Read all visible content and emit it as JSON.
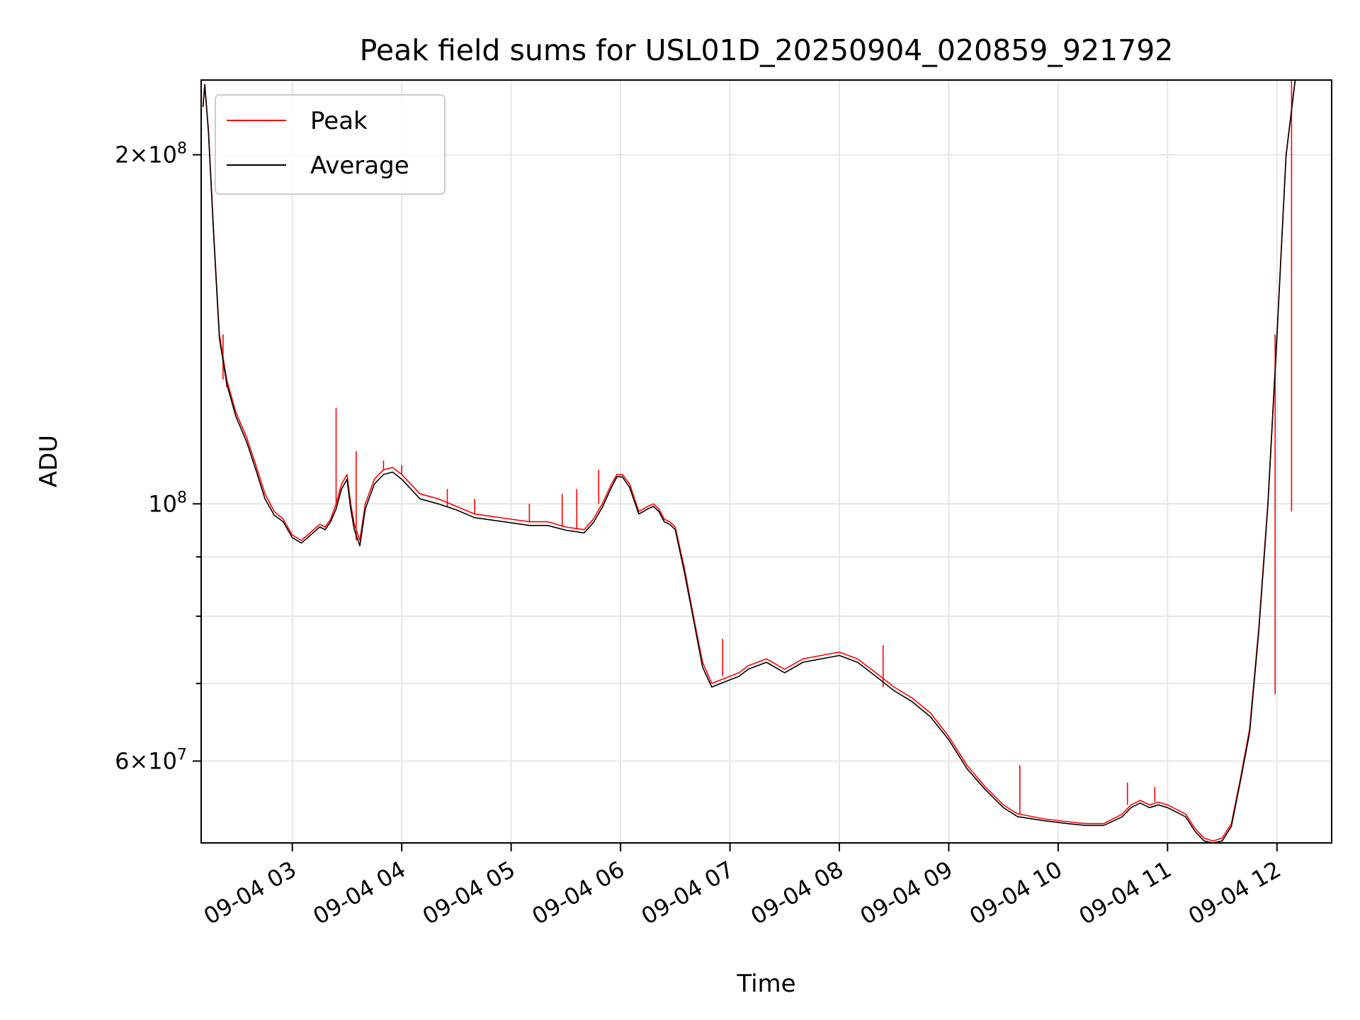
{
  "chart_data": {
    "type": "line",
    "title": "Peak field sums for USL01D_20250904_020859_921792",
    "xlabel": "Time",
    "ylabel": "ADU",
    "yscale": "log",
    "grid": true,
    "legend_position": "upper-left",
    "xlim": [
      "2025-09-04 02:10",
      "2025-09-04 12:30"
    ],
    "ylim": [
      51000000,
      232000000
    ],
    "x_ticks": [
      "09-04 03",
      "09-04 04",
      "09-04 05",
      "09-04 06",
      "09-04 07",
      "09-04 08",
      "09-04 09",
      "09-04 10",
      "09-04 11",
      "09-04 12"
    ],
    "y_tick_labels": [
      {
        "value": 200000000,
        "mantissa": "2",
        "exponent": "8"
      },
      {
        "value": 100000000,
        "mantissa": "",
        "exponent": "8"
      },
      {
        "value": 60000000,
        "mantissa": "6",
        "exponent": "7"
      }
    ],
    "y_minor_ticks": [
      70000000,
      80000000,
      90000000
    ],
    "series": [
      {
        "name": "Peak",
        "color": "#ff0000",
        "x": [
          "2025-09-04 02:11",
          "2025-09-04 02:12",
          "2025-09-04 02:14",
          "2025-09-04 02:17",
          "2025-09-04 02:20",
          "2025-09-04 02:24",
          "2025-09-04 02:29",
          "2025-09-04 02:35",
          "2025-09-04 02:40",
          "2025-09-04 02:45",
          "2025-09-04 02:50",
          "2025-09-04 02:55",
          "2025-09-04 03:00",
          "2025-09-04 03:05",
          "2025-09-04 03:10",
          "2025-09-04 03:15",
          "2025-09-04 03:18",
          "2025-09-04 03:21",
          "2025-09-04 03:24",
          "2025-09-04 03:27",
          "2025-09-04 03:30",
          "2025-09-04 03:32",
          "2025-09-04 03:34",
          "2025-09-04 03:37",
          "2025-09-04 03:40",
          "2025-09-04 03:45",
          "2025-09-04 03:50",
          "2025-09-04 03:55",
          "2025-09-04 04:00",
          "2025-09-04 04:05",
          "2025-09-04 04:10",
          "2025-09-04 04:20",
          "2025-09-04 04:30",
          "2025-09-04 04:40",
          "2025-09-04 04:50",
          "2025-09-04 05:00",
          "2025-09-04 05:10",
          "2025-09-04 05:20",
          "2025-09-04 05:30",
          "2025-09-04 05:40",
          "2025-09-04 05:45",
          "2025-09-04 05:50",
          "2025-09-04 05:55",
          "2025-09-04 05:58",
          "2025-09-04 06:01",
          "2025-09-04 06:05",
          "2025-09-04 06:10",
          "2025-09-04 06:15",
          "2025-09-04 06:18",
          "2025-09-04 06:21",
          "2025-09-04 06:24",
          "2025-09-04 06:27",
          "2025-09-04 06:30",
          "2025-09-04 06:35",
          "2025-09-04 06:40",
          "2025-09-04 06:45",
          "2025-09-04 06:50",
          "2025-09-04 06:55",
          "2025-09-04 07:00",
          "2025-09-04 07:05",
          "2025-09-04 07:10",
          "2025-09-04 07:20",
          "2025-09-04 07:30",
          "2025-09-04 07:40",
          "2025-09-04 07:50",
          "2025-09-04 08:00",
          "2025-09-04 08:10",
          "2025-09-04 08:20",
          "2025-09-04 08:30",
          "2025-09-04 08:40",
          "2025-09-04 08:50",
          "2025-09-04 09:00",
          "2025-09-04 09:10",
          "2025-09-04 09:20",
          "2025-09-04 09:30",
          "2025-09-04 09:38",
          "2025-09-04 09:39",
          "2025-09-04 09:52",
          "2025-09-04 10:05",
          "2025-09-04 10:15",
          "2025-09-04 10:25",
          "2025-09-04 10:35",
          "2025-09-04 10:40",
          "2025-09-04 10:45",
          "2025-09-04 10:50",
          "2025-09-04 10:55",
          "2025-09-04 11:00",
          "2025-09-04 11:05",
          "2025-09-04 11:10",
          "2025-09-04 11:15",
          "2025-09-04 11:20",
          "2025-09-04 11:25",
          "2025-09-04 11:30",
          "2025-09-04 11:35",
          "2025-09-04 11:40",
          "2025-09-04 11:45",
          "2025-09-04 11:50",
          "2025-09-04 11:55",
          "2025-09-04 12:00",
          "2025-09-04 12:05",
          "2025-09-04 12:10",
          "2025-09-04 12:15",
          "2025-09-04 12:20",
          "2025-09-04 12:25",
          "2025-09-04 12:30"
        ],
        "y": [
          220000000,
          230000000,
          210000000,
          170000000,
          140000000,
          128000000,
          120000000,
          114000000,
          108000000,
          102000000,
          98500000,
          97000000,
          94000000,
          93000000,
          94500000,
          96000000,
          95500000,
          97000000,
          100000000,
          104000000,
          106000000,
          100000000,
          96000000,
          93000000,
          100000000,
          105000000,
          107000000,
          107500000,
          106000000,
          104000000,
          102000000,
          101000000,
          99500000,
          98000000,
          97500000,
          97000000,
          96500000,
          96500000,
          95500000,
          95000000,
          97000000,
          100000000,
          104000000,
          106000000,
          106000000,
          104000000,
          98500000,
          99500000,
          100000000,
          99000000,
          97000000,
          96500000,
          95500000,
          88000000,
          80000000,
          73000000,
          70000000,
          70500000,
          71000000,
          71500000,
          72500000,
          73500000,
          72000000,
          73500000,
          74000000,
          74500000,
          73500000,
          71500000,
          69500000,
          68000000,
          66000000,
          63000000,
          59500000,
          57000000,
          55000000,
          54000000,
          54000000,
          53500000,
          53200000,
          53000000,
          53000000,
          54000000,
          55000000,
          55500000,
          55000000,
          55300000,
          55000000,
          54500000,
          54000000,
          52500000,
          51500000,
          51200000,
          51500000,
          53000000,
          58000000,
          64000000,
          78000000,
          100000000,
          140000000,
          200000000,
          232000000,
          232000000,
          232000000,
          232000000,
          232000000
        ],
        "spikes": [
          {
            "x": "2025-09-04 02:22",
            "y": 140000000
          },
          {
            "x": "2025-09-04 02:24",
            "y": 126000000
          },
          {
            "x": "2025-09-04 03:24",
            "y": 121000000
          },
          {
            "x": "2025-09-04 03:35",
            "y": 111000000
          },
          {
            "x": "2025-09-04 03:50",
            "y": 109000000
          },
          {
            "x": "2025-09-04 04:00",
            "y": 108000000
          },
          {
            "x": "2025-09-04 04:25",
            "y": 103000000
          },
          {
            "x": "2025-09-04 04:40",
            "y": 101000000
          },
          {
            "x": "2025-09-04 05:10",
            "y": 100000000
          },
          {
            "x": "2025-09-04 05:28",
            "y": 102000000
          },
          {
            "x": "2025-09-04 05:36",
            "y": 103000000
          },
          {
            "x": "2025-09-04 05:48",
            "y": 107000000
          },
          {
            "x": "2025-09-04 06:56",
            "y": 76500000
          },
          {
            "x": "2025-09-04 08:24",
            "y": 75500000
          },
          {
            "x": "2025-09-04 09:39",
            "y": 59500000
          },
          {
            "x": "2025-09-04 10:38",
            "y": 57500000
          },
          {
            "x": "2025-09-04 10:53",
            "y": 57000000
          },
          {
            "x": "2025-09-04 11:59",
            "y": 68500000
          },
          {
            "x": "2025-09-04 12:08",
            "y": 98500000
          }
        ]
      },
      {
        "name": "Average",
        "color": "#000000",
        "x": [
          "2025-09-04 02:11",
          "2025-09-04 02:12",
          "2025-09-04 02:14",
          "2025-09-04 02:17",
          "2025-09-04 02:20",
          "2025-09-04 02:24",
          "2025-09-04 02:29",
          "2025-09-04 02:35",
          "2025-09-04 02:40",
          "2025-09-04 02:45",
          "2025-09-04 02:50",
          "2025-09-04 02:55",
          "2025-09-04 03:00",
          "2025-09-04 03:05",
          "2025-09-04 03:10",
          "2025-09-04 03:15",
          "2025-09-04 03:18",
          "2025-09-04 03:21",
          "2025-09-04 03:24",
          "2025-09-04 03:27",
          "2025-09-04 03:30",
          "2025-09-04 03:32",
          "2025-09-04 03:34",
          "2025-09-04 03:37",
          "2025-09-04 03:40",
          "2025-09-04 03:45",
          "2025-09-04 03:50",
          "2025-09-04 03:55",
          "2025-09-04 04:00",
          "2025-09-04 04:05",
          "2025-09-04 04:10",
          "2025-09-04 04:20",
          "2025-09-04 04:30",
          "2025-09-04 04:40",
          "2025-09-04 04:50",
          "2025-09-04 05:00",
          "2025-09-04 05:10",
          "2025-09-04 05:20",
          "2025-09-04 05:30",
          "2025-09-04 05:40",
          "2025-09-04 05:45",
          "2025-09-04 05:50",
          "2025-09-04 05:55",
          "2025-09-04 05:58",
          "2025-09-04 06:01",
          "2025-09-04 06:05",
          "2025-09-04 06:10",
          "2025-09-04 06:15",
          "2025-09-04 06:18",
          "2025-09-04 06:21",
          "2025-09-04 06:24",
          "2025-09-04 06:27",
          "2025-09-04 06:30",
          "2025-09-04 06:35",
          "2025-09-04 06:40",
          "2025-09-04 06:45",
          "2025-09-04 06:50",
          "2025-09-04 06:55",
          "2025-09-04 07:00",
          "2025-09-04 07:05",
          "2025-09-04 07:10",
          "2025-09-04 07:20",
          "2025-09-04 07:30",
          "2025-09-04 07:40",
          "2025-09-04 07:50",
          "2025-09-04 08:00",
          "2025-09-04 08:10",
          "2025-09-04 08:20",
          "2025-09-04 08:30",
          "2025-09-04 08:40",
          "2025-09-04 08:50",
          "2025-09-04 09:00",
          "2025-09-04 09:10",
          "2025-09-04 09:20",
          "2025-09-04 09:30",
          "2025-09-04 09:38",
          "2025-09-04 09:39",
          "2025-09-04 09:52",
          "2025-09-04 10:05",
          "2025-09-04 10:15",
          "2025-09-04 10:25",
          "2025-09-04 10:35",
          "2025-09-04 10:40",
          "2025-09-04 10:45",
          "2025-09-04 10:50",
          "2025-09-04 10:55",
          "2025-09-04 11:00",
          "2025-09-04 11:05",
          "2025-09-04 11:10",
          "2025-09-04 11:15",
          "2025-09-04 11:20",
          "2025-09-04 11:25",
          "2025-09-04 11:30",
          "2025-09-04 11:35",
          "2025-09-04 11:40",
          "2025-09-04 11:45",
          "2025-09-04 11:50",
          "2025-09-04 11:55",
          "2025-09-04 12:00",
          "2025-09-04 12:05",
          "2025-09-04 12:10",
          "2025-09-04 12:15",
          "2025-09-04 12:20",
          "2025-09-04 12:25",
          "2025-09-04 12:30"
        ],
        "y": [
          220000000,
          230000000,
          209000000,
          169000000,
          139000000,
          127000000,
          119000000,
          113000000,
          107000000,
          101000000,
          97800000,
          96500000,
          93500000,
          92500000,
          94000000,
          95500000,
          95000000,
          96500000,
          99000000,
          103000000,
          105000000,
          99000000,
          95000000,
          92000000,
          99000000,
          104000000,
          106000000,
          106500000,
          105000000,
          103000000,
          101000000,
          100000000,
          98800000,
          97300000,
          96800000,
          96300000,
          95800000,
          95800000,
          94900000,
          94400000,
          96300000,
          99300000,
          103300000,
          105500000,
          105500000,
          103300000,
          98000000,
          99000000,
          99500000,
          98500000,
          96500000,
          96000000,
          95000000,
          87300000,
          79500000,
          72300000,
          69500000,
          70000000,
          70500000,
          71000000,
          72000000,
          73000000,
          71500000,
          73000000,
          73500000,
          74000000,
          73000000,
          71000000,
          69000000,
          67500000,
          65500000,
          62600000,
          59100000,
          56700000,
          54700000,
          53700000,
          53700000,
          53300000,
          53000000,
          52800000,
          52800000,
          53700000,
          54700000,
          55200000,
          54700000,
          55000000,
          54700000,
          54200000,
          53700000,
          52200000,
          51200000,
          51000000,
          51200000,
          52700000,
          57700000,
          63500000,
          77500000,
          99500000,
          139500000,
          199500000,
          232000000,
          232000000,
          232000000,
          232000000,
          232000000
        ]
      }
    ]
  }
}
